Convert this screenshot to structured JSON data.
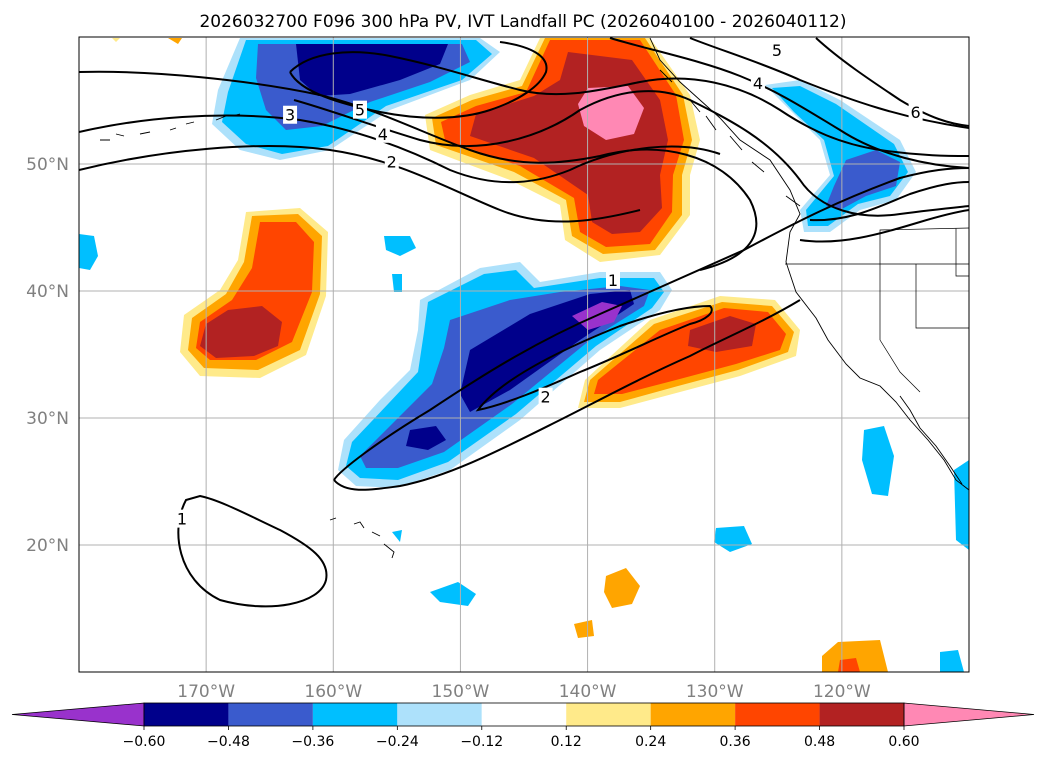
{
  "title": "2026032700 F096 300 hPa PV, IVT Landfall PC (2026040100 - 2026040112)",
  "map": {
    "projection": "PlateCarree",
    "lon_range": [
      -180,
      -110
    ],
    "lat_range": [
      10,
      60
    ],
    "lat_labels": [
      {
        "lat": 50,
        "text": "50°N"
      },
      {
        "lat": 40,
        "text": "40°N"
      },
      {
        "lat": 30,
        "text": "30°N"
      },
      {
        "lat": 20,
        "text": "20°N"
      }
    ],
    "lon_labels": [
      {
        "lon": -170,
        "text": "170°W"
      },
      {
        "lon": -160,
        "text": "160°W"
      },
      {
        "lon": -150,
        "text": "150°W"
      },
      {
        "lon": -140,
        "text": "140°W"
      },
      {
        "lon": -130,
        "text": "130°W"
      },
      {
        "lon": -120,
        "text": "120°W"
      }
    ],
    "gridlines": true,
    "contour_labels": [
      {
        "text": "1",
        "lon": -138,
        "lat": 40.8
      },
      {
        "text": "2",
        "lon": -143.3,
        "lat": 31.6
      },
      {
        "text": "1",
        "lon": -171.9,
        "lat": 22
      },
      {
        "text": "2",
        "lon": -155.4,
        "lat": 50.1
      },
      {
        "text": "4",
        "lon": -156.1,
        "lat": 52.3
      },
      {
        "text": "5",
        "lon": -157.9,
        "lat": 54.2
      },
      {
        "text": "3",
        "lon": -163.4,
        "lat": 53.8
      },
      {
        "text": "4",
        "lon": -126.6,
        "lat": 56.3
      },
      {
        "text": "5",
        "lon": -125.1,
        "lat": 58.9
      },
      {
        "text": "6",
        "lon": -114.2,
        "lat": 54.0
      }
    ]
  },
  "colorbar": {
    "colors": [
      "#9932cc",
      "#00008b",
      "#3a5bcd",
      "#00bfff",
      "#ade1fb",
      "#ffffff",
      "#ffea8a",
      "#ffa500",
      "#ff4500",
      "#b22222",
      "#ff88b4"
    ],
    "tick_labels": [
      "−0.60",
      "−0.48",
      "−0.36",
      "−0.24",
      "−0.12",
      "0.12",
      "0.24",
      "0.36",
      "0.48",
      "0.60"
    ],
    "extend": "both"
  },
  "colors": {
    "grid": "#b0b0b0",
    "coast": "#000000"
  }
}
